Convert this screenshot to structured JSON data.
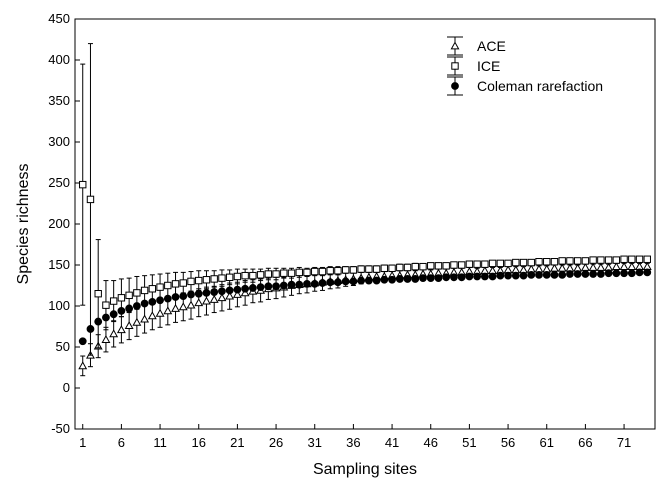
{
  "chart_data": {
    "type": "scatter",
    "xlabel": "Sampling sites",
    "ylabel": "Species richness",
    "xlim": [
      0,
      75
    ],
    "ylim": [
      -50,
      450
    ],
    "x_ticks": [
      1,
      6,
      11,
      16,
      21,
      26,
      31,
      36,
      41,
      46,
      51,
      56,
      61,
      66,
      71
    ],
    "y_ticks": [
      -50,
      0,
      50,
      100,
      150,
      200,
      250,
      300,
      350,
      400,
      450
    ],
    "legend_position": "top-right",
    "error_bars": true,
    "x": [
      1,
      2,
      3,
      4,
      5,
      6,
      7,
      8,
      9,
      10,
      11,
      12,
      13,
      14,
      15,
      16,
      17,
      18,
      19,
      20,
      21,
      22,
      23,
      24,
      25,
      26,
      27,
      28,
      29,
      30,
      31,
      32,
      33,
      34,
      35,
      36,
      37,
      38,
      39,
      40,
      41,
      42,
      43,
      44,
      45,
      46,
      47,
      48,
      49,
      50,
      51,
      52,
      53,
      54,
      55,
      56,
      57,
      58,
      59,
      60,
      61,
      62,
      63,
      64,
      65,
      66,
      67,
      68,
      69,
      70,
      71,
      72,
      73,
      74
    ],
    "series": [
      {
        "name": "ACE",
        "marker": "open-triangle",
        "color": "#000000",
        "values": [
          27,
          40,
          51,
          59,
          66,
          71,
          76,
          80,
          84,
          88,
          91,
          94,
          97,
          99,
          101,
          104,
          106,
          108,
          110,
          112,
          114,
          116,
          118,
          119,
          121,
          122,
          123,
          125,
          126,
          127,
          128,
          129,
          130,
          131,
          132,
          133,
          134,
          135,
          136,
          136,
          137,
          137,
          138,
          138,
          139,
          139,
          140,
          140,
          141,
          141,
          142,
          142,
          143,
          143,
          143,
          144,
          144,
          144,
          145,
          145,
          145,
          146,
          146,
          146,
          146,
          147,
          147,
          147,
          147,
          148,
          148,
          148,
          148,
          148
        ],
        "errors": [
          12,
          14,
          14,
          15,
          16,
          16,
          17,
          17,
          17,
          17,
          17,
          17,
          17,
          17,
          17,
          17,
          17,
          16,
          16,
          16,
          15,
          15,
          14,
          14,
          13,
          13,
          12,
          12,
          11,
          11,
          10,
          10,
          9,
          9,
          8,
          8,
          7,
          7,
          7,
          6,
          6,
          6,
          6,
          5,
          5,
          5,
          5,
          5,
          5,
          5,
          5,
          4,
          4,
          4,
          4,
          4,
          4,
          4,
          4,
          4,
          4,
          4,
          4,
          4,
          4,
          4,
          4,
          4,
          4,
          4,
          4,
          4,
          4,
          4
        ]
      },
      {
        "name": "ICE",
        "marker": "open-square",
        "color": "#000000",
        "values": [
          248,
          230,
          115,
          101,
          106,
          110,
          113,
          116,
          119,
          121,
          123,
          125,
          127,
          128,
          130,
          131,
          132,
          133,
          134,
          135,
          136,
          137,
          137,
          138,
          139,
          139,
          140,
          140,
          141,
          141,
          142,
          142,
          143,
          143,
          144,
          144,
          145,
          145,
          145,
          146,
          146,
          147,
          147,
          148,
          148,
          149,
          149,
          149,
          150,
          150,
          151,
          151,
          151,
          152,
          152,
          152,
          153,
          153,
          153,
          154,
          154,
          154,
          155,
          155,
          155,
          155,
          156,
          156,
          156,
          156,
          157,
          157,
          157,
          157
        ],
        "errors": [
          147,
          190,
          66,
          30,
          25,
          23,
          21,
          20,
          18,
          17,
          16,
          15,
          14,
          13,
          12,
          12,
          11,
          10,
          10,
          9,
          9,
          8,
          8,
          7,
          7,
          7,
          6,
          6,
          6,
          5,
          5,
          5,
          5,
          5,
          4,
          4,
          4,
          4,
          4,
          4,
          4,
          4,
          4,
          4,
          3,
          3,
          3,
          3,
          3,
          3,
          3,
          3,
          3,
          3,
          3,
          3,
          3,
          3,
          3,
          3,
          3,
          3,
          3,
          3,
          3,
          3,
          3,
          3,
          3,
          3,
          3,
          3,
          3,
          3
        ]
      },
      {
        "name": "Coleman rarefaction",
        "marker": "filled-circle",
        "color": "#000000",
        "values": [
          57,
          72,
          81,
          86,
          90,
          94,
          97,
          100,
          103,
          105,
          107,
          109,
          111,
          112,
          114,
          115,
          116,
          117,
          118,
          119,
          120,
          121,
          122,
          123,
          124,
          124,
          125,
          126,
          126,
          127,
          127,
          128,
          129,
          129,
          130,
          130,
          131,
          131,
          131,
          132,
          132,
          133,
          133,
          133,
          134,
          134,
          134,
          135,
          135,
          135,
          136,
          136,
          136,
          136,
          137,
          137,
          137,
          137,
          138,
          138,
          138,
          138,
          138,
          139,
          139,
          139,
          139,
          139,
          140,
          140,
          140,
          140,
          141,
          141
        ],
        "errors": []
      }
    ]
  }
}
